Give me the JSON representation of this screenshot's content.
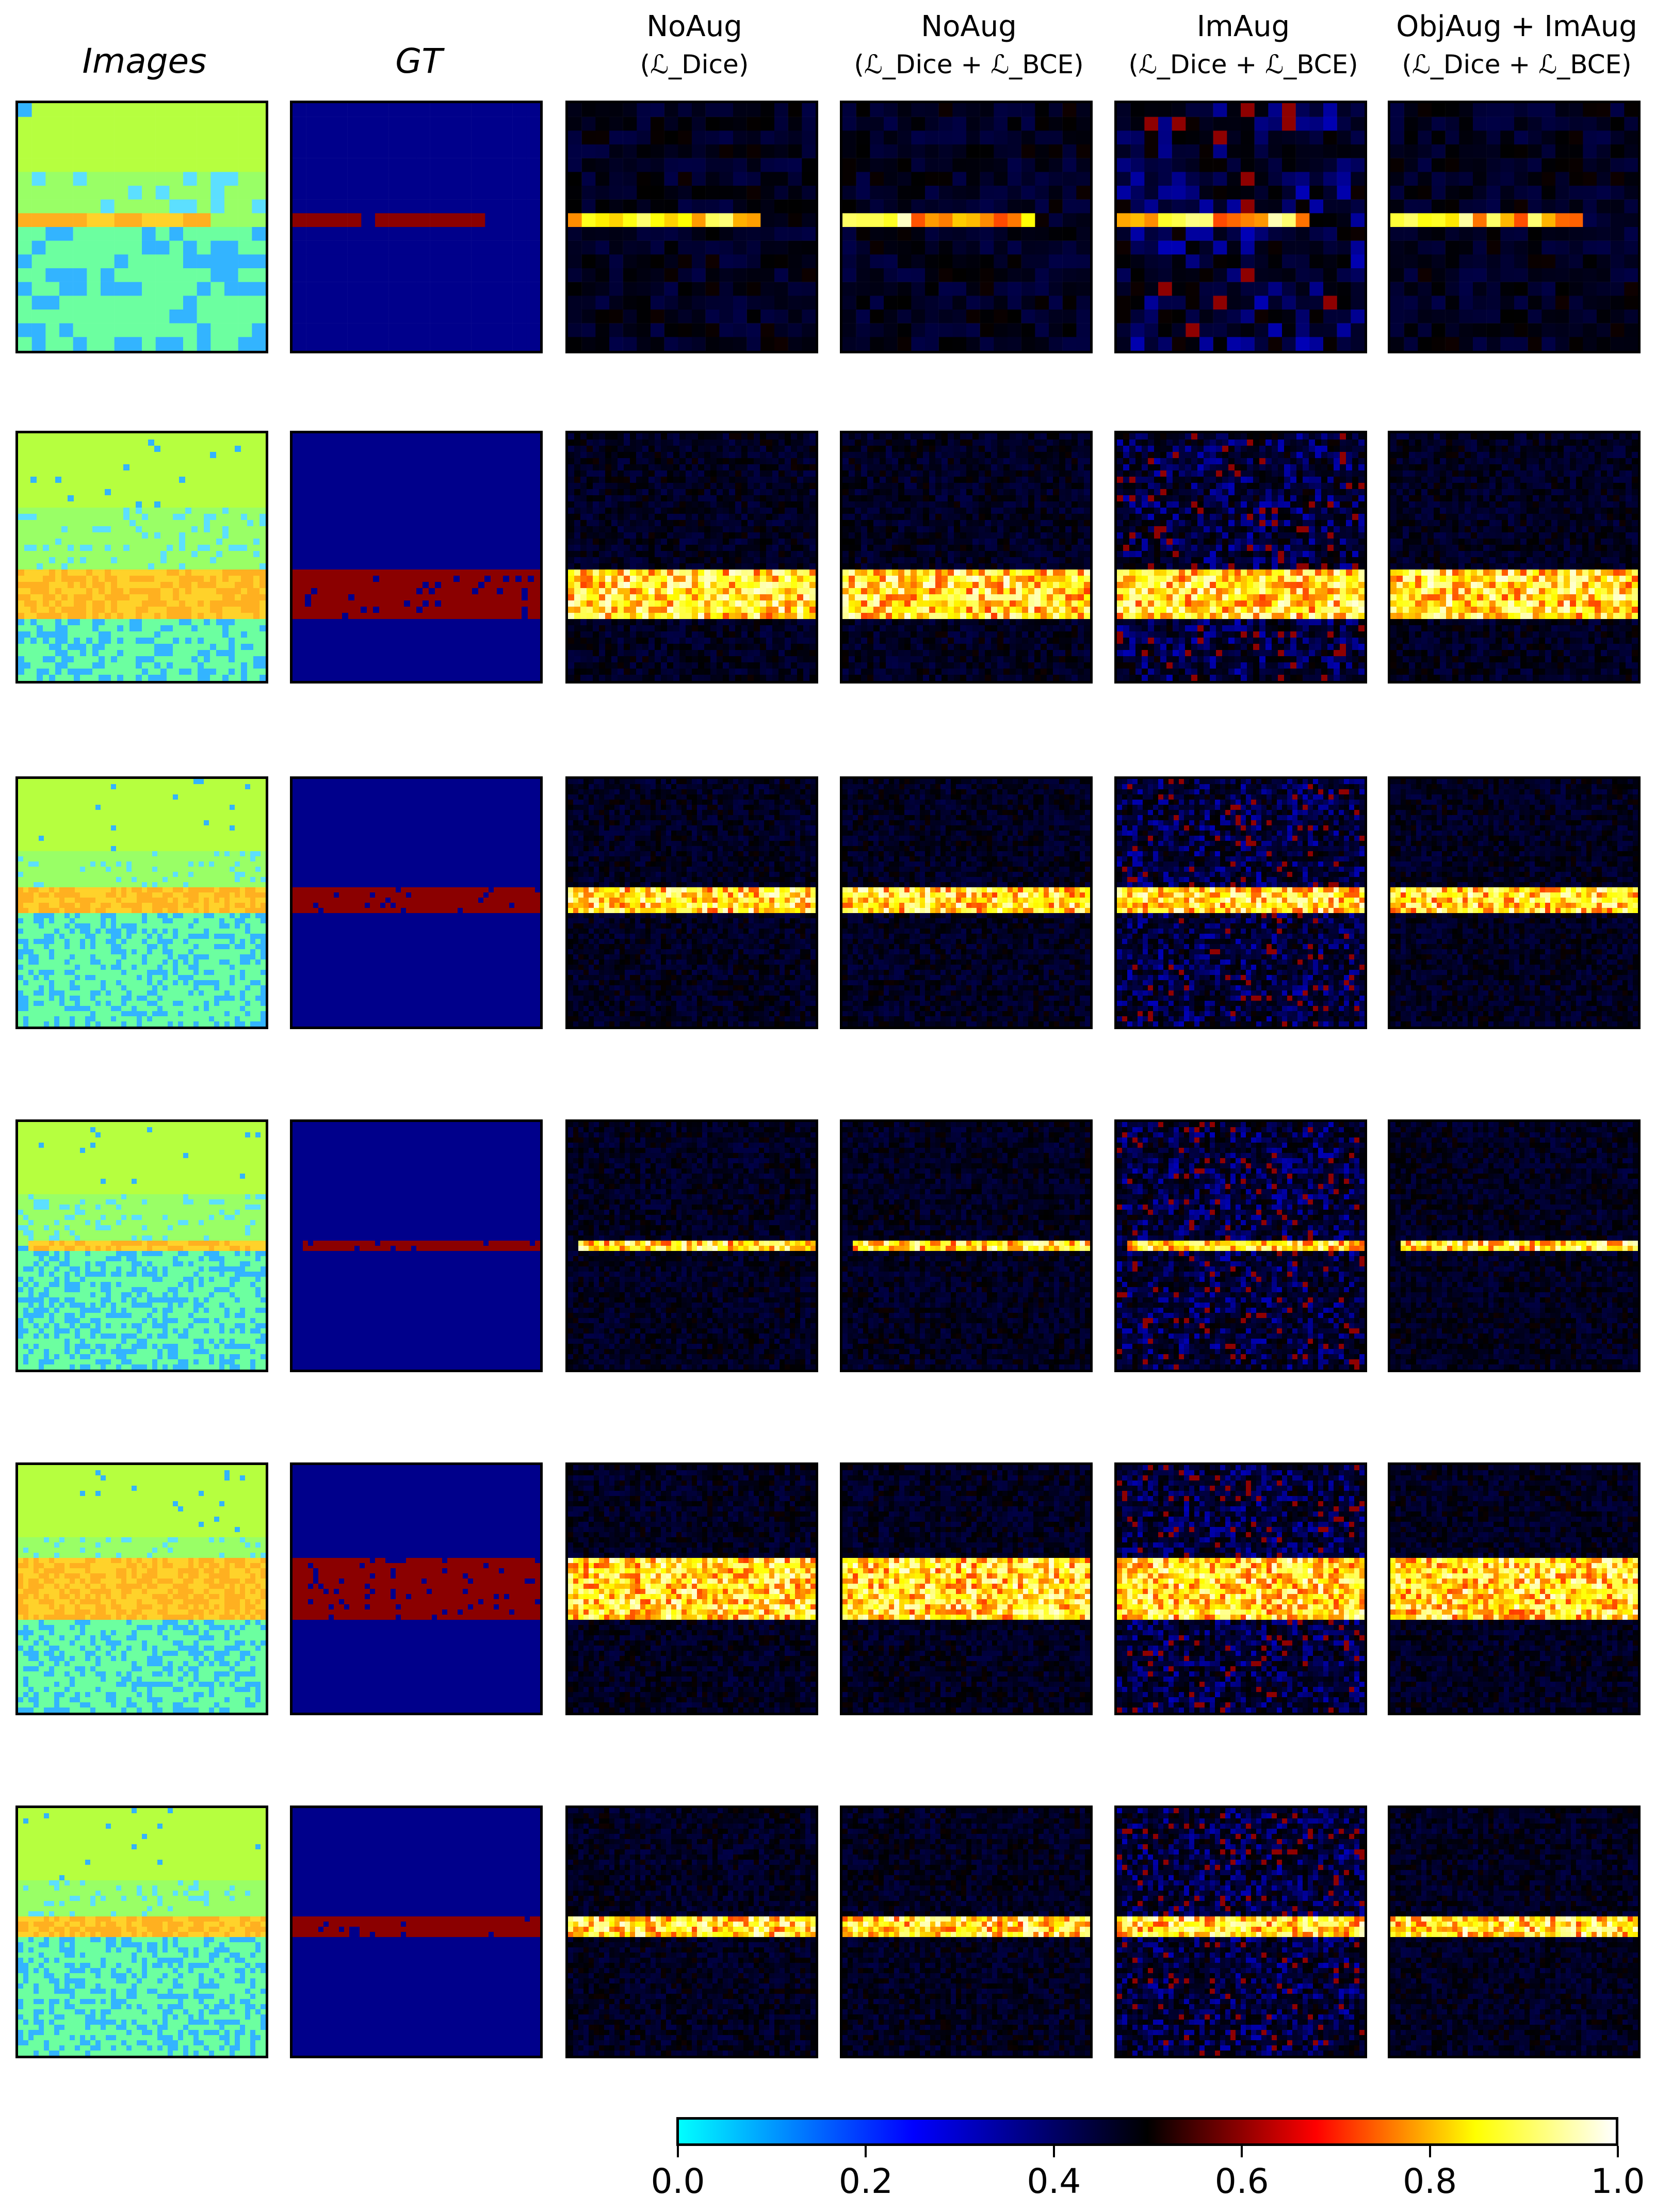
{
  "headers": {
    "images": "Images",
    "gt": "GT",
    "c1_l1": "NoAug",
    "c1_l2": "(ℒ_Dice)",
    "c2_l1": "NoAug",
    "c2_l2": "(ℒ_Dice + ℒ_BCE)",
    "c3_l1": "ImAug",
    "c3_l2": "(ℒ_Dice + ℒ_BCE)",
    "c4_l1": "ObjAug + ImAug",
    "c4_l2": "(ℒ_Dice + ℒ_BCE)"
  },
  "colorbar": {
    "colormap": "cyan-blue-black-red-yellow-white",
    "ticks": [
      "0.0",
      "0.2",
      "0.4",
      "0.6",
      "0.8",
      "1.0"
    ]
  },
  "colors": {
    "gt_background": "#00008b",
    "gt_mask": "#8b0000",
    "image_background": "#b6ff3f",
    "image_noise": "#33b4ff"
  },
  "grid": {
    "rows": 6,
    "columns": [
      "Images",
      "GT",
      "NoAug (Dice)",
      "NoAug (Dice+BCE)",
      "ImAug (Dice+BCE)",
      "ObjAug + ImAug (Dice+BCE)"
    ]
  }
}
